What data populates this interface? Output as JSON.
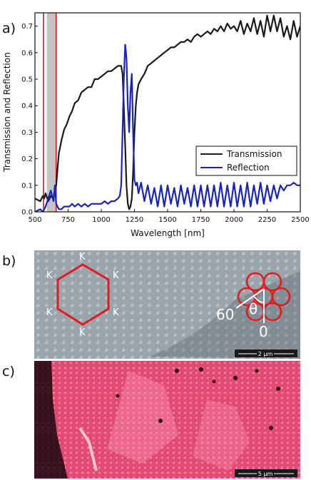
{
  "panels": {
    "a": "a)",
    "b": "b)",
    "c": "c)"
  },
  "chart_data": {
    "type": "line",
    "xlabel": "Wavelength [nm]",
    "ylabel": "Transmission and Reflection",
    "xlim": [
      500,
      2500
    ],
    "ylim": [
      0,
      0.75
    ],
    "xticks": [
      "500",
      "750",
      "1000",
      "1250",
      "1500",
      "1750",
      "2000",
      "2250",
      "2500"
    ],
    "yticks": [
      "0.0",
      "0.1",
      "0.2",
      "0.3",
      "0.4",
      "0.5",
      "0.6",
      "0.7"
    ],
    "legend_position": "lower-right",
    "highlight_band": [
      590,
      660
    ],
    "red_line_x": 565,
    "series": [
      {
        "name": "Transmission",
        "color": "#1a1a1a",
        "x": [
          500,
          540,
          560,
          570,
          580,
          600,
          620,
          640,
          650,
          660,
          670,
          680,
          700,
          720,
          740,
          760,
          780,
          800,
          825,
          850,
          875,
          900,
          925,
          950,
          975,
          1000,
          1025,
          1050,
          1075,
          1100,
          1125,
          1150,
          1160,
          1170,
          1180,
          1190,
          1200,
          1210,
          1220,
          1230,
          1240,
          1250,
          1260,
          1270,
          1280,
          1300,
          1325,
          1350,
          1375,
          1400,
          1425,
          1450,
          1475,
          1500,
          1525,
          1550,
          1575,
          1600,
          1625,
          1650,
          1675,
          1700,
          1725,
          1750,
          1775,
          1800,
          1825,
          1850,
          1875,
          1900,
          1925,
          1950,
          1975,
          2000,
          2025,
          2050,
          2075,
          2100,
          2125,
          2150,
          2175,
          2200,
          2225,
          2250,
          2275,
          2300,
          2325,
          2350,
          2375,
          2400,
          2425,
          2450,
          2475,
          2500
        ],
        "y": [
          0.05,
          0.04,
          0.06,
          0.05,
          0.07,
          0.04,
          0.06,
          0.05,
          0.08,
          0.1,
          0.16,
          0.22,
          0.27,
          0.31,
          0.33,
          0.36,
          0.38,
          0.41,
          0.42,
          0.45,
          0.46,
          0.47,
          0.47,
          0.5,
          0.5,
          0.51,
          0.52,
          0.53,
          0.53,
          0.54,
          0.55,
          0.55,
          0.52,
          0.4,
          0.25,
          0.1,
          0.03,
          0.01,
          0.02,
          0.05,
          0.15,
          0.3,
          0.4,
          0.45,
          0.48,
          0.5,
          0.52,
          0.55,
          0.56,
          0.57,
          0.58,
          0.59,
          0.6,
          0.61,
          0.62,
          0.62,
          0.63,
          0.64,
          0.64,
          0.65,
          0.64,
          0.66,
          0.67,
          0.66,
          0.67,
          0.68,
          0.67,
          0.69,
          0.68,
          0.7,
          0.68,
          0.71,
          0.69,
          0.7,
          0.68,
          0.72,
          0.67,
          0.71,
          0.68,
          0.73,
          0.67,
          0.72,
          0.66,
          0.74,
          0.68,
          0.74,
          0.68,
          0.73,
          0.66,
          0.7,
          0.65,
          0.72,
          0.66,
          0.7
        ]
      },
      {
        "name": "Reflection",
        "color": "#1624c4",
        "x": [
          500,
          540,
          560,
          580,
          600,
          620,
          640,
          650,
          660,
          670,
          680,
          700,
          720,
          740,
          760,
          780,
          800,
          825,
          850,
          875,
          900,
          925,
          950,
          975,
          1000,
          1025,
          1050,
          1075,
          1100,
          1125,
          1140,
          1150,
          1160,
          1170,
          1180,
          1190,
          1200,
          1210,
          1220,
          1230,
          1240,
          1250,
          1260,
          1270,
          1280,
          1300,
          1325,
          1350,
          1375,
          1400,
          1425,
          1450,
          1475,
          1500,
          1525,
          1550,
          1575,
          1600,
          1625,
          1650,
          1675,
          1700,
          1725,
          1750,
          1775,
          1800,
          1825,
          1850,
          1875,
          1900,
          1925,
          1950,
          1975,
          2000,
          2025,
          2050,
          2075,
          2100,
          2125,
          2150,
          2175,
          2200,
          2225,
          2250,
          2275,
          2300,
          2325,
          2350,
          2375,
          2400,
          2425,
          2450,
          2475,
          2500
        ],
        "y": [
          0.0,
          0.01,
          0.0,
          0.02,
          0.05,
          0.08,
          0.04,
          0.1,
          0.03,
          0.02,
          0.01,
          0.01,
          0.02,
          0.02,
          0.02,
          0.03,
          0.02,
          0.03,
          0.02,
          0.03,
          0.02,
          0.03,
          0.03,
          0.03,
          0.03,
          0.04,
          0.03,
          0.04,
          0.04,
          0.05,
          0.06,
          0.1,
          0.3,
          0.5,
          0.63,
          0.58,
          0.4,
          0.3,
          0.45,
          0.52,
          0.3,
          0.12,
          0.1,
          0.11,
          0.07,
          0.11,
          0.04,
          0.1,
          0.03,
          0.09,
          0.02,
          0.1,
          0.02,
          0.1,
          0.03,
          0.09,
          0.02,
          0.1,
          0.03,
          0.09,
          0.02,
          0.1,
          0.02,
          0.1,
          0.02,
          0.1,
          0.02,
          0.1,
          0.02,
          0.11,
          0.02,
          0.1,
          0.02,
          0.11,
          0.02,
          0.1,
          0.02,
          0.11,
          0.02,
          0.1,
          0.03,
          0.11,
          0.03,
          0.1,
          0.04,
          0.1,
          0.05,
          0.1,
          0.08,
          0.1,
          0.1,
          0.11,
          0.1,
          0.1
        ]
      }
    ]
  },
  "panel_b": {
    "k_labels": [
      "K",
      "K",
      "K",
      "K",
      "K",
      "K"
    ],
    "angle_60": "60",
    "angle_theta": "θ",
    "angle_0": "0",
    "scalebar": "2 μm"
  },
  "panel_c": {
    "scalebar": "5 μm"
  }
}
